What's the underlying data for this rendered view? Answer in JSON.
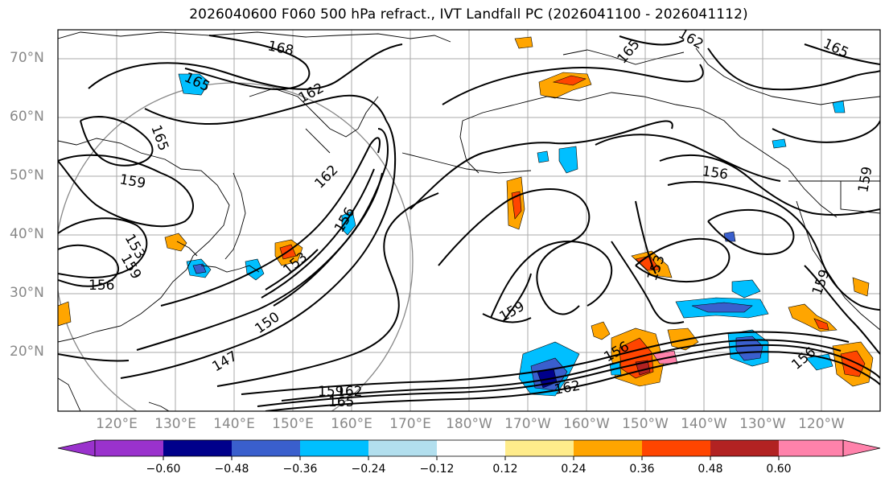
{
  "title": "2026040600 F060 500 hPa refract., IVT Landfall PC (2026041100 - 2026041112)",
  "lat_labels": [
    "70°N",
    "60°N",
    "50°N",
    "40°N",
    "30°N",
    "20°N"
  ],
  "lon_labels": [
    "120°E",
    "130°E",
    "140°E",
    "150°E",
    "160°E",
    "170°E",
    "180°W",
    "170°W",
    "160°W",
    "150°W",
    "140°W",
    "130°W",
    "120°W"
  ],
  "colorbar": {
    "colors": [
      "#9a32cd",
      "#00008b",
      "#3a5fcd",
      "#00bfff",
      "#b2dfee",
      "#ffffff",
      "#ffec8b",
      "#ffa500",
      "#ff4500",
      "#b22222",
      "#ff82ab"
    ],
    "ticks": [
      "−0.60",
      "−0.48",
      "−0.36",
      "−0.24",
      "−0.12",
      "0.12",
      "0.24",
      "0.36",
      "0.48",
      "0.60"
    ]
  },
  "contour_labels": [
    "168",
    "165",
    "162",
    "165",
    "162",
    "165",
    "159",
    "162",
    "165",
    "156",
    "159",
    "156",
    "153",
    "150",
    "147",
    "156",
    "159",
    "162",
    "156",
    "153",
    "159",
    "156",
    "159",
    "162",
    "165",
    "159",
    "153"
  ]
}
